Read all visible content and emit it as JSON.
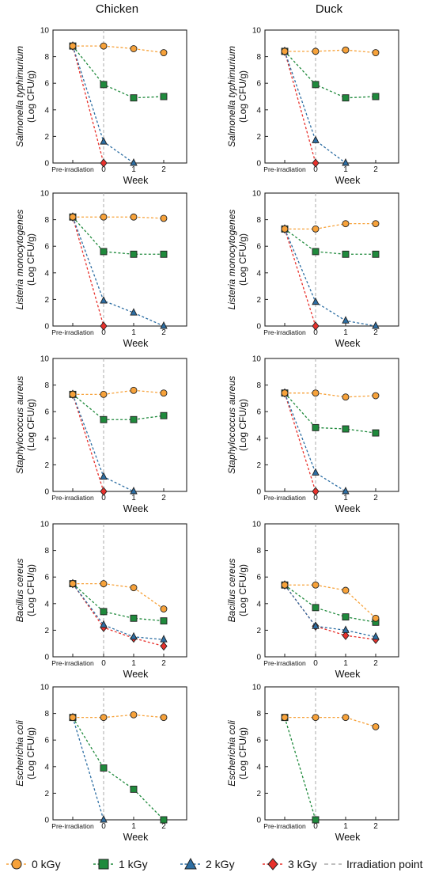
{
  "columns": [
    "Chicken",
    "Duck"
  ],
  "legend": [
    {
      "label": "0 kGy",
      "color": "#f7a23a",
      "marker": "circle"
    },
    {
      "label": "1 kGy",
      "color": "#1f8a3c",
      "marker": "square"
    },
    {
      "label": "2 kGy",
      "color": "#2d6ea3",
      "marker": "triangle"
    },
    {
      "label": "3 kGy",
      "color": "#e8312c",
      "marker": "diamond"
    },
    {
      "label": "Irradiation point",
      "color": "#aaaaaa",
      "marker": "dash"
    }
  ],
  "chart_data": [
    {
      "type": "line",
      "column": "Chicken",
      "organism": "Salmonella typhimurium",
      "ylabel_unit": "(Log CFU/g)",
      "xlabel": "Week",
      "categories": [
        "Pre-irradiation",
        "0",
        "1",
        "2"
      ],
      "ylim": [
        0,
        10
      ],
      "yticks": [
        0,
        2,
        4,
        6,
        8,
        10
      ],
      "series": [
        {
          "name": "0 kGy",
          "values": [
            8.8,
            8.8,
            8.6,
            8.3
          ]
        },
        {
          "name": "1 kGy",
          "values": [
            8.8,
            5.9,
            4.9,
            5.0
          ]
        },
        {
          "name": "2 kGy",
          "values": [
            8.8,
            1.6,
            0,
            null
          ]
        },
        {
          "name": "3 kGy",
          "values": [
            8.8,
            0,
            null,
            null
          ]
        }
      ]
    },
    {
      "type": "line",
      "column": "Duck",
      "organism": "Salmonella typhimurium",
      "ylabel_unit": "(Log CFU/g)",
      "xlabel": "Week",
      "categories": [
        "Pre-irradiation",
        "0",
        "1",
        "2"
      ],
      "ylim": [
        0,
        10
      ],
      "yticks": [
        0,
        2,
        4,
        6,
        8,
        10
      ],
      "series": [
        {
          "name": "0 kGy",
          "values": [
            8.4,
            8.4,
            8.5,
            8.3
          ]
        },
        {
          "name": "1 kGy",
          "values": [
            8.4,
            5.9,
            4.9,
            5.0
          ]
        },
        {
          "name": "2 kGy",
          "values": [
            8.4,
            1.7,
            0,
            null
          ]
        },
        {
          "name": "3 kGy",
          "values": [
            8.4,
            0,
            null,
            null
          ]
        }
      ]
    },
    {
      "type": "line",
      "column": "Chicken",
      "organism": "Listeria monocytogenes",
      "ylabel_unit": "(Log CFU/g)",
      "xlabel": "Week",
      "categories": [
        "Pre-irradiation",
        "0",
        "1",
        "2"
      ],
      "ylim": [
        0,
        10
      ],
      "yticks": [
        0,
        2,
        4,
        6,
        8,
        10
      ],
      "series": [
        {
          "name": "0 kGy",
          "values": [
            8.2,
            8.2,
            8.2,
            8.1
          ]
        },
        {
          "name": "1 kGy",
          "values": [
            8.2,
            5.6,
            5.4,
            5.4
          ]
        },
        {
          "name": "2 kGy",
          "values": [
            8.2,
            1.9,
            1.0,
            0
          ]
        },
        {
          "name": "3 kGy",
          "values": [
            8.2,
            0,
            null,
            null
          ]
        }
      ]
    },
    {
      "type": "line",
      "column": "Duck",
      "organism": "Listeria monocytogenes",
      "ylabel_unit": "(Log CFU/g)",
      "xlabel": "Week",
      "categories": [
        "Pre-irradiation",
        "0",
        "1",
        "2"
      ],
      "ylim": [
        0,
        10
      ],
      "yticks": [
        0,
        2,
        4,
        6,
        8,
        10
      ],
      "series": [
        {
          "name": "0 kGy",
          "values": [
            7.3,
            7.3,
            7.7,
            7.7
          ]
        },
        {
          "name": "1 kGy",
          "values": [
            7.3,
            5.6,
            5.4,
            5.4
          ]
        },
        {
          "name": "2 kGy",
          "values": [
            7.3,
            1.8,
            0.4,
            0
          ]
        },
        {
          "name": "3 kGy",
          "values": [
            7.3,
            0,
            null,
            null
          ]
        }
      ]
    },
    {
      "type": "line",
      "column": "Chicken",
      "organism": "Staphylococcus aureus",
      "ylabel_unit": "(Log CFU/g)",
      "xlabel": "Week",
      "categories": [
        "Pre-irradiation",
        "0",
        "1",
        "2"
      ],
      "ylim": [
        0,
        10
      ],
      "yticks": [
        0,
        2,
        4,
        6,
        8,
        10
      ],
      "series": [
        {
          "name": "0 kGy",
          "values": [
            7.3,
            7.3,
            7.6,
            7.4
          ]
        },
        {
          "name": "1 kGy",
          "values": [
            7.3,
            5.4,
            5.4,
            5.7
          ]
        },
        {
          "name": "2 kGy",
          "values": [
            7.3,
            1.1,
            0,
            null
          ]
        },
        {
          "name": "3 kGy",
          "values": [
            7.3,
            0,
            null,
            null
          ]
        }
      ]
    },
    {
      "type": "line",
      "column": "Duck",
      "organism": "Staphylococcus aureus",
      "ylabel_unit": "(Log CFU/g)",
      "xlabel": "Week",
      "categories": [
        "Pre-irradiation",
        "0",
        "1",
        "2"
      ],
      "ylim": [
        0,
        10
      ],
      "yticks": [
        0,
        2,
        4,
        6,
        8,
        10
      ],
      "series": [
        {
          "name": "0 kGy",
          "values": [
            7.4,
            7.4,
            7.1,
            7.2
          ]
        },
        {
          "name": "1 kGy",
          "values": [
            7.4,
            4.8,
            4.7,
            4.4
          ]
        },
        {
          "name": "2 kGy",
          "values": [
            7.4,
            1.4,
            0,
            null
          ]
        },
        {
          "name": "3 kGy",
          "values": [
            7.4,
            0,
            null,
            null
          ]
        }
      ]
    },
    {
      "type": "line",
      "column": "Chicken",
      "organism": "Bacillus cereus",
      "ylabel_unit": "(Log CFU/g)",
      "xlabel": "Week",
      "categories": [
        "Pre-irradiation",
        "0",
        "1",
        "2"
      ],
      "ylim": [
        0,
        10
      ],
      "yticks": [
        0,
        2,
        4,
        6,
        8,
        10
      ],
      "series": [
        {
          "name": "0 kGy",
          "values": [
            5.5,
            5.5,
            5.2,
            3.6
          ]
        },
        {
          "name": "1 kGy",
          "values": [
            5.5,
            3.4,
            2.9,
            2.7
          ]
        },
        {
          "name": "2 kGy",
          "values": [
            5.5,
            2.4,
            1.5,
            1.3
          ]
        },
        {
          "name": "3 kGy",
          "values": [
            5.5,
            2.2,
            1.4,
            0.8
          ]
        }
      ]
    },
    {
      "type": "line",
      "column": "Duck",
      "organism": "Bacillus cereus",
      "ylabel_unit": "(Log CFU/g)",
      "xlabel": "Week",
      "categories": [
        "Pre-irradiation",
        "0",
        "1",
        "2"
      ],
      "ylim": [
        0,
        10
      ],
      "yticks": [
        0,
        2,
        4,
        6,
        8,
        10
      ],
      "series": [
        {
          "name": "0 kGy",
          "values": [
            5.4,
            5.4,
            5.0,
            2.9
          ]
        },
        {
          "name": "1 kGy",
          "values": [
            5.4,
            3.7,
            3.0,
            2.6
          ]
        },
        {
          "name": "2 kGy",
          "values": [
            5.4,
            2.3,
            2.0,
            1.5
          ]
        },
        {
          "name": "3 kGy",
          "values": [
            5.4,
            2.3,
            1.6,
            1.3
          ]
        }
      ]
    },
    {
      "type": "line",
      "column": "Chicken",
      "organism": "Escherichia coli",
      "ylabel_unit": "(Log CFU/g)",
      "xlabel": "Week",
      "categories": [
        "Pre-irradiation",
        "0",
        "1",
        "2"
      ],
      "ylim": [
        0,
        10
      ],
      "yticks": [
        0,
        2,
        4,
        6,
        8,
        10
      ],
      "series": [
        {
          "name": "0 kGy",
          "values": [
            7.7,
            7.7,
            7.9,
            7.7
          ]
        },
        {
          "name": "1 kGy",
          "values": [
            7.7,
            3.9,
            2.3,
            0
          ]
        },
        {
          "name": "2 kGy",
          "values": [
            7.7,
            0,
            null,
            null
          ]
        },
        {
          "name": "3 kGy",
          "values": [
            null,
            null,
            null,
            null
          ]
        }
      ]
    },
    {
      "type": "line",
      "column": "Duck",
      "organism": "Escherichia coli",
      "ylabel_unit": "(Log CFU/g)",
      "xlabel": "Week",
      "categories": [
        "Pre-irradiation",
        "0",
        "1",
        "2"
      ],
      "ylim": [
        0,
        10
      ],
      "yticks": [
        0,
        2,
        4,
        6,
        8,
        10
      ],
      "series": [
        {
          "name": "0 kGy",
          "values": [
            7.7,
            7.7,
            7.7,
            7.0
          ]
        },
        {
          "name": "1 kGy",
          "values": [
            7.7,
            0,
            null,
            null
          ]
        },
        {
          "name": "2 kGy",
          "values": [
            null,
            null,
            null,
            null
          ]
        },
        {
          "name": "3 kGy",
          "values": [
            null,
            null,
            null,
            null
          ]
        }
      ]
    }
  ]
}
